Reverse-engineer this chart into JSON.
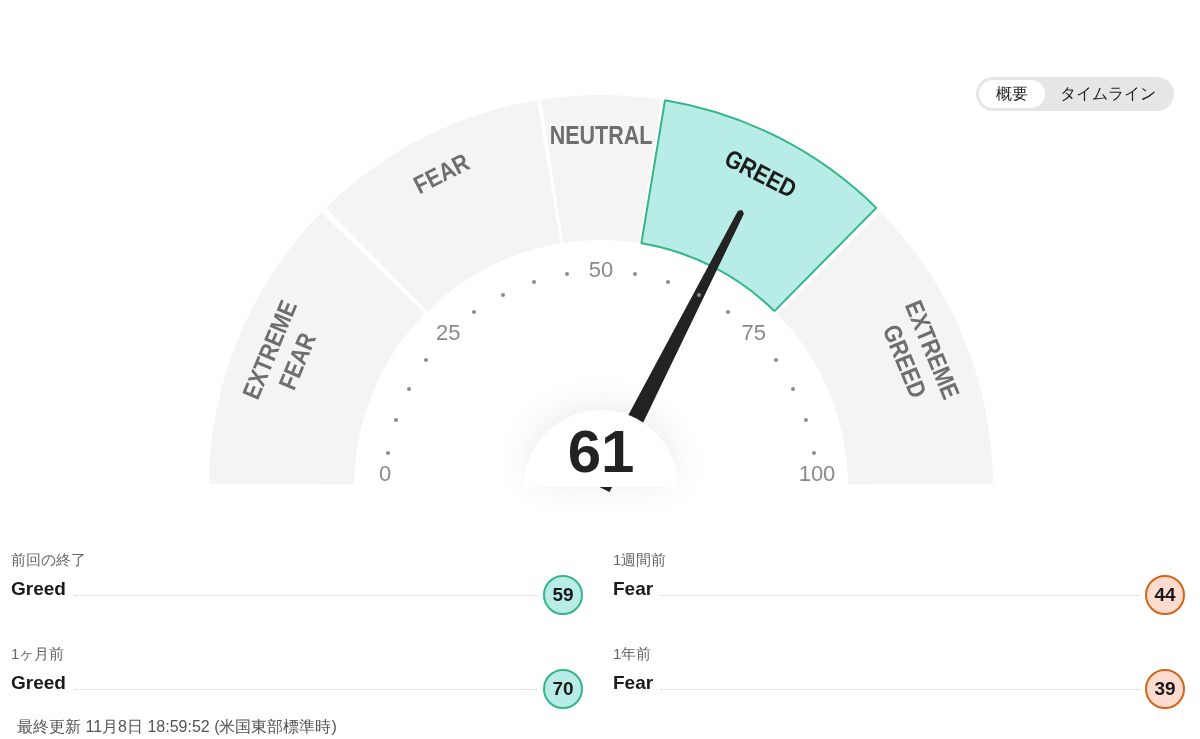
{
  "chart_data": [
    {
      "type": "other",
      "annotations": [
        "概要",
        "タイムライン"
      ]
    },
    {
      "type": "donut",
      "categories": [
        "EXTREME FEAR",
        "FEAR",
        "NEUTRAL",
        "GREED",
        "EXTREME GREED"
      ],
      "values": [
        25,
        20,
        10,
        20,
        25
      ],
      "colors": [
        "#f4f4f4",
        "#f4f4f4",
        "#f4f4f4",
        "#b8ece6",
        "#f4f4f4"
      ],
      "needle": "GREED",
      "annotations": [
        "0",
        "25",
        "50",
        "75",
        "100",
        "61"
      ]
    },
    {
      "type": "other",
      "categories": [
        "前回の終了"
      ],
      "values": [
        59
      ],
      "colors": [
        "#b8ece6"
      ],
      "data_labels": true,
      "annotations": [
        "Greed"
      ]
    },
    {
      "type": "other",
      "categories": [
        "1週間前"
      ],
      "values": [
        44
      ],
      "colors": [
        "#fddccf"
      ],
      "data_labels": true,
      "annotations": [
        "Fear"
      ]
    },
    {
      "type": "other",
      "categories": [
        "1ヶ月前"
      ],
      "values": [
        70
      ],
      "colors": [
        "#b8ece6"
      ],
      "data_labels": true,
      "annotations": [
        "Greed"
      ]
    },
    {
      "type": "other",
      "categories": [
        "1年前"
      ],
      "values": [
        39
      ],
      "colors": [
        "#fddccf"
      ],
      "data_labels": true,
      "annotations": [
        "Fear"
      ]
    },
    {
      "type": "other",
      "annotations": [
        "最終更新 11月8日 18:59:52 (米国東部標準時)"
      ]
    }
  ]
}
